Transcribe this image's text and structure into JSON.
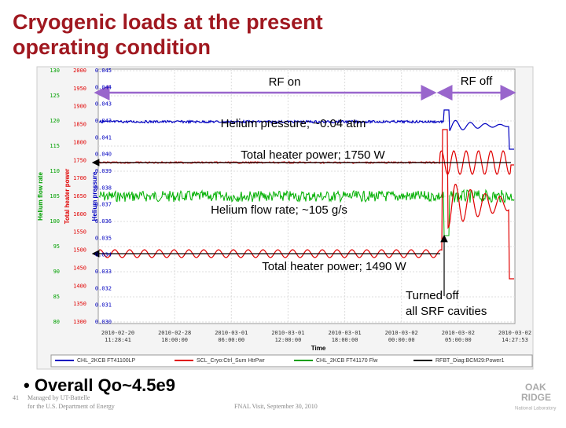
{
  "title": [
    "Cryogenic loads at the present",
    "operating condition"
  ],
  "chart": {
    "axes": {
      "flow": {
        "label": "Helium flow rate",
        "ticks": [
          "130",
          "125",
          "120",
          "115",
          "110",
          "105",
          "100",
          "95",
          "90",
          "85",
          "80"
        ]
      },
      "power": {
        "label": "Total heater power",
        "ticks": [
          "2000",
          "1950",
          "1900",
          "1850",
          "1800",
          "1750",
          "1700",
          "1650",
          "1600",
          "1550",
          "1500",
          "1450",
          "1400",
          "1350",
          "1300"
        ]
      },
      "pressure": {
        "label": "Helium pressure",
        "ticks": [
          "0.045",
          "0.044",
          "0.043",
          "0.042",
          "0.041",
          "0.040",
          "0.039",
          "0.038",
          "0.037",
          "0.036",
          "0.035",
          "0.034",
          "0.033",
          "0.032",
          "0.031",
          "0.030"
        ]
      }
    },
    "time_ticks": [
      [
        "2010-02-20",
        "11:28:41"
      ],
      [
        "2010-02-28",
        "18:00:00"
      ],
      [
        "2010-03-01",
        "06:00:00"
      ],
      [
        "2010-03-01",
        "12:00:00"
      ],
      [
        "2010-03-01",
        "18:00:00"
      ],
      [
        "2010-03-02",
        "00:00:00"
      ],
      [
        "2010-03-02",
        "05:00:00"
      ],
      [
        "2010-03-02",
        "14:27:53"
      ]
    ],
    "time_label": "Time",
    "legend": [
      "CHL_2KCB FT41100LP",
      "SCL_Cryo:Ctrl_Sum HtrPwr",
      "CHL_2KCB FT41170 Flw",
      "RFBT_Diag:BCM29:Power1"
    ]
  },
  "annotations": {
    "rf_on": "RF on",
    "rf_off": "RF off",
    "pressure": "Helium pressure; ~0.04 atm",
    "heater_high": "Total heater power; 1750 W",
    "flow": "Helium flow rate; ~105 g/s",
    "heater_low": "Total heater power; 1490 W",
    "turned_off": [
      "Turned off",
      "all SRF cavities"
    ]
  },
  "bullet": "Overall Qo~4.5e9",
  "footer": {
    "page": "41",
    "managed": [
      "Managed by UT-Battelle",
      "for the U.S. Department of Energy"
    ],
    "event": "FNAL Visit, September 30, 2010",
    "logo": [
      "OAK",
      "RIDGE",
      "National Laboratory"
    ]
  }
}
